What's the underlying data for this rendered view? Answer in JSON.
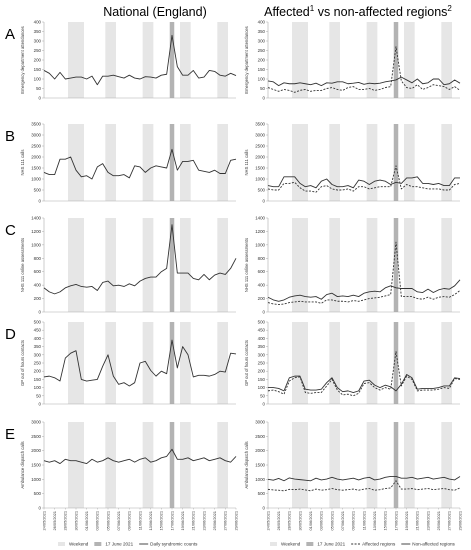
{
  "headers": {
    "left": "National (England)",
    "right_main": "Affected",
    "right_sup1": "1",
    "right_mid": " vs non-affected regions",
    "right_sup2": "2"
  },
  "legend_left": {
    "weekend": "Weekend",
    "event": "17 June 2021",
    "daily": "Daily syndromic counts"
  },
  "legend_right": {
    "weekend": "Weekend",
    "event": "17 June 2021",
    "affected": "Affected regions",
    "nonaffected": "Non-affected regions"
  },
  "colors": {
    "weekend_shade": "#e6e6e6",
    "event_bar": "#b3b3b3",
    "line": "#333333",
    "axis": "#aaaaaa",
    "grid": "#d8d8d8"
  },
  "chart_data": {
    "type": "line",
    "x_dates": [
      "24/05/2021",
      "25/05/2021",
      "26/05/2021",
      "27/05/2021",
      "28/05/2021",
      "29/05/2021",
      "30/05/2021",
      "31/05/2021",
      "01/06/2021",
      "02/06/2021",
      "03/06/2021",
      "04/06/2021",
      "05/06/2021",
      "06/06/2021",
      "07/06/2021",
      "08/06/2021",
      "09/06/2021",
      "10/06/2021",
      "11/06/2021",
      "12/06/2021",
      "13/06/2021",
      "14/06/2021",
      "15/06/2021",
      "16/06/2021",
      "17/06/2021",
      "18/06/2021",
      "19/06/2021",
      "20/06/2021",
      "21/06/2021",
      "22/06/2021",
      "23/06/2021",
      "24/06/2021",
      "25/06/2021",
      "26/06/2021",
      "27/06/2021",
      "28/06/2021",
      "29/06/2021"
    ],
    "x_tick_labels": [
      "24/05/2021",
      "26/05/2021",
      "28/05/2021",
      "30/05/2021",
      "01/06/2021",
      "03/06/2021",
      "05/06/2021",
      "07/06/2021",
      "09/06/2021",
      "11/06/2021",
      "13/06/2021",
      "15/06/2021",
      "17/06/2021",
      "19/06/2021",
      "21/06/2021",
      "23/06/2021",
      "25/06/2021",
      "27/06/2021",
      "29/06/2021"
    ],
    "weekend_dates": [
      [
        "29/05/2021",
        "31/05/2021"
      ],
      [
        "05/06/2021",
        "06/06/2021"
      ],
      [
        "12/06/2021",
        "13/06/2021"
      ],
      [
        "19/06/2021",
        "20/06/2021"
      ],
      [
        "26/06/2021",
        "27/06/2021"
      ]
    ],
    "event_date": "17/06/2021",
    "panels": [
      {
        "letter": "A",
        "ylabel": "Emergency department attendances",
        "ylim": [
          0,
          400
        ],
        "yticks": [
          0,
          50,
          100,
          150,
          200,
          250,
          300,
          350,
          400
        ],
        "national": [
          145,
          130,
          100,
          135,
          100,
          105,
          110,
          110,
          100,
          115,
          70,
          115,
          115,
          120,
          112,
          105,
          120,
          105,
          100,
          112,
          110,
          105,
          120,
          125,
          330,
          165,
          120,
          120,
          145,
          105,
          110,
          145,
          140,
          120,
          115,
          130,
          118
        ],
        "affected": [
          55,
          45,
          35,
          45,
          40,
          30,
          40,
          45,
          35,
          40,
          40,
          50,
          55,
          45,
          40,
          55,
          60,
          45,
          45,
          50,
          40,
          45,
          55,
          60,
          270,
          90,
          55,
          50,
          70,
          45,
          55,
          70,
          65,
          60,
          45,
          60,
          40
        ],
        "nonaffected": [
          90,
          85,
          65,
          80,
          75,
          75,
          80,
          75,
          70,
          78,
          65,
          80,
          78,
          85,
          85,
          75,
          78,
          82,
          72,
          78,
          75,
          78,
          85,
          90,
          95,
          110,
          95,
          80,
          100,
          75,
          80,
          100,
          100,
          70,
          75,
          95,
          78
        ]
      },
      {
        "letter": "B",
        "ylabel": "NHS 111 calls",
        "ylim": [
          0,
          3500
        ],
        "yticks": [
          0,
          500,
          1000,
          1500,
          2000,
          2500,
          3000,
          3500
        ],
        "national": [
          1300,
          1200,
          1200,
          1900,
          1900,
          2000,
          1400,
          1100,
          1150,
          1000,
          1550,
          1700,
          1300,
          1150,
          1150,
          1200,
          1050,
          1600,
          1550,
          1300,
          1500,
          1600,
          1550,
          1500,
          2350,
          1400,
          1800,
          1800,
          1850,
          1400,
          1350,
          1300,
          1400,
          1250,
          1250,
          1850,
          1900
        ],
        "affected": [
          550,
          500,
          500,
          800,
          800,
          850,
          600,
          450,
          450,
          400,
          650,
          700,
          550,
          500,
          500,
          550,
          450,
          650,
          650,
          550,
          600,
          650,
          650,
          650,
          1600,
          550,
          750,
          650,
          650,
          600,
          550,
          550,
          550,
          500,
          500,
          750,
          800
        ],
        "nonaffected": [
          700,
          650,
          650,
          1100,
          1100,
          1100,
          800,
          650,
          700,
          600,
          900,
          1000,
          750,
          650,
          650,
          700,
          600,
          950,
          900,
          750,
          900,
          950,
          900,
          750,
          850,
          800,
          1050,
          1050,
          1100,
          800,
          800,
          750,
          800,
          700,
          700,
          1050,
          1050
        ]
      },
      {
        "letter": "C",
        "ylabel": "NHS 111 online assessments",
        "ylim": [
          0,
          1400
        ],
        "yticks": [
          0,
          200,
          400,
          600,
          800,
          1000,
          1200,
          1400
        ],
        "national": [
          360,
          300,
          270,
          300,
          360,
          390,
          410,
          380,
          370,
          380,
          320,
          440,
          460,
          390,
          400,
          380,
          420,
          390,
          460,
          500,
          520,
          520,
          600,
          650,
          1300,
          580,
          580,
          580,
          500,
          480,
          560,
          480,
          550,
          580,
          560,
          650,
          800
        ],
        "affected": [
          140,
          120,
          110,
          120,
          140,
          150,
          160,
          150,
          150,
          150,
          130,
          180,
          180,
          160,
          160,
          150,
          170,
          160,
          180,
          200,
          210,
          220,
          240,
          260,
          1040,
          230,
          230,
          230,
          200,
          190,
          220,
          190,
          220,
          230,
          220,
          260,
          320
        ],
        "nonaffected": [
          220,
          180,
          160,
          180,
          220,
          240,
          250,
          230,
          220,
          230,
          190,
          260,
          280,
          230,
          240,
          230,
          250,
          230,
          280,
          300,
          310,
          300,
          360,
          390,
          360,
          350,
          350,
          350,
          300,
          290,
          340,
          290,
          330,
          350,
          340,
          390,
          480
        ]
      },
      {
        "letter": "D",
        "ylabel": "GP out of hours contacts",
        "ylim": [
          0,
          500
        ],
        "yticks": [
          0,
          50,
          100,
          150,
          200,
          250,
          300,
          350,
          400,
          450,
          500
        ],
        "national": [
          165,
          170,
          160,
          140,
          280,
          310,
          325,
          150,
          140,
          145,
          150,
          230,
          300,
          170,
          120,
          130,
          110,
          130,
          250,
          260,
          205,
          170,
          200,
          185,
          390,
          220,
          350,
          300,
          165,
          175,
          175,
          170,
          180,
          200,
          195,
          310,
          305
        ],
        "affected": [
          80,
          85,
          75,
          60,
          140,
          160,
          165,
          70,
          65,
          70,
          70,
          110,
          150,
          85,
          55,
          60,
          50,
          65,
          125,
          130,
          100,
          85,
          100,
          90,
          320,
          110,
          170,
          150,
          80,
          85,
          85,
          85,
          90,
          100,
          95,
          155,
          150
        ],
        "nonaffected": [
          100,
          100,
          95,
          80,
          160,
          170,
          170,
          90,
          85,
          85,
          90,
          130,
          160,
          100,
          75,
          80,
          70,
          80,
          140,
          145,
          115,
          100,
          115,
          105,
          80,
          120,
          180,
          160,
          90,
          95,
          95,
          95,
          100,
          110,
          110,
          160,
          155
        ]
      },
      {
        "letter": "E",
        "ylabel": "Ambulance dispatch calls",
        "ylim": [
          0,
          3000
        ],
        "yticks": [
          0,
          500,
          1000,
          1500,
          2000,
          2500,
          3000
        ],
        "national": [
          1650,
          1600,
          1650,
          1550,
          1700,
          1650,
          1650,
          1600,
          1550,
          1700,
          1600,
          1650,
          1750,
          1650,
          1600,
          1650,
          1700,
          1600,
          1700,
          1750,
          1600,
          1650,
          1750,
          1800,
          2050,
          1700,
          1700,
          1750,
          1650,
          1700,
          1750,
          1650,
          1700,
          1750,
          1650,
          1600,
          1800
        ],
        "affected": [
          650,
          630,
          620,
          600,
          650,
          640,
          660,
          630,
          600,
          660,
          620,
          640,
          680,
          640,
          620,
          640,
          660,
          620,
          660,
          680,
          620,
          640,
          680,
          700,
          950,
          660,
          660,
          680,
          640,
          660,
          680,
          640,
          660,
          680,
          640,
          620,
          700
        ],
        "nonaffected": [
          1000,
          970,
          1030,
          950,
          1050,
          1010,
          990,
          970,
          950,
          1040,
          980,
          1010,
          1070,
          1010,
          980,
          1010,
          1040,
          980,
          1040,
          1070,
          980,
          1010,
          1070,
          1100,
          1100,
          1040,
          1040,
          1070,
          1010,
          1040,
          1070,
          1010,
          1040,
          1070,
          1010,
          980,
          1100
        ]
      }
    ]
  }
}
